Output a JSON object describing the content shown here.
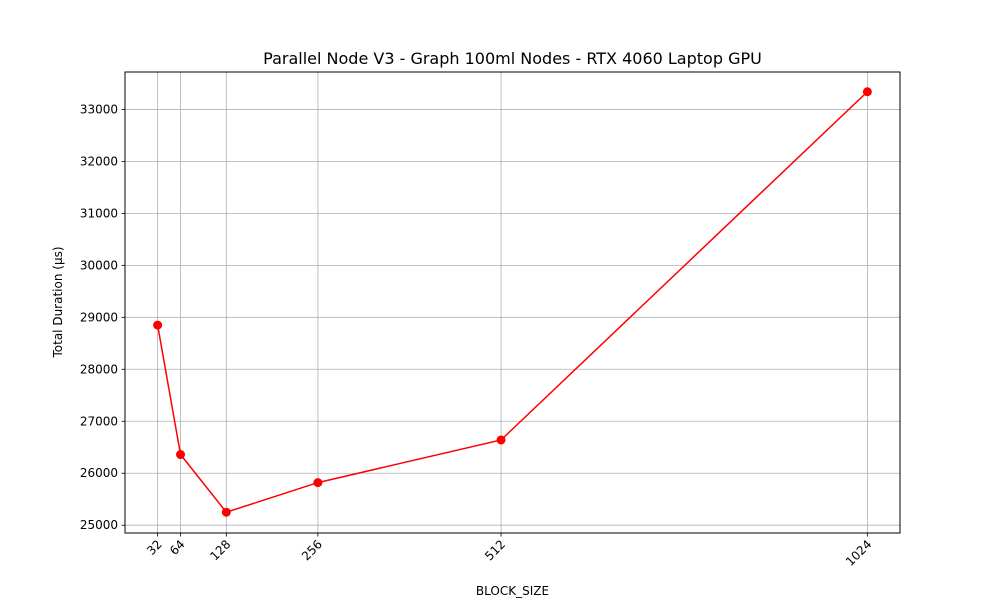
{
  "chart_data": {
    "type": "line",
    "title": "Parallel Node V3 - Graph 100ml Nodes - RTX 4060 Laptop GPU",
    "xlabel": "BLOCK_SIZE",
    "ylabel": "Total Duration (µs)",
    "x": [
      32,
      64,
      128,
      256,
      512,
      1024
    ],
    "x_ticks": [
      "32",
      "64",
      "128",
      "256",
      "512",
      "1024"
    ],
    "xlim": [
      -13.6,
      1069.6
    ],
    "ylim": [
      24850,
      33720
    ],
    "y_ticks": [
      25000,
      26000,
      27000,
      28000,
      29000,
      30000,
      31000,
      32000,
      33000
    ],
    "series": [
      {
        "color": "#ff0000",
        "marker": "circle",
        "values": [
          28850,
          26360,
          25250,
          25820,
          26640,
          33340
        ]
      }
    ],
    "grid": true
  }
}
